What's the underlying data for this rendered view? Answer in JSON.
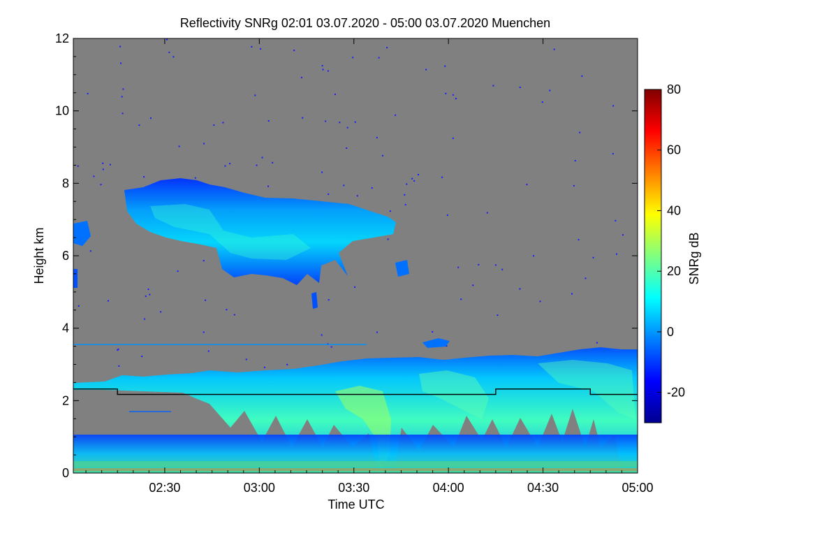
{
  "chart_data": {
    "type": "heatmap",
    "title": "Reflectivity SNRg   02:01 03.07.2020 - 05:00 03.07.2020 Muenchen",
    "xlabel": "Time UTC",
    "ylabel": "Height km",
    "x_range": [
      "02:01",
      "05:00"
    ],
    "xlim_minutes": [
      121,
      300
    ],
    "ylim": [
      0,
      12
    ],
    "x_ticks": [
      {
        "label": "02:30",
        "minutes": 150
      },
      {
        "label": "03:00",
        "minutes": 180
      },
      {
        "label": "03:30",
        "minutes": 210
      },
      {
        "label": "04:00",
        "minutes": 240
      },
      {
        "label": "04:30",
        "minutes": 270
      },
      {
        "label": "05:00",
        "minutes": 300
      }
    ],
    "y_ticks": [
      "0",
      "2",
      "4",
      "6",
      "8",
      "10",
      "12"
    ],
    "y_tick_values": [
      0,
      2,
      4,
      6,
      8,
      10,
      12
    ],
    "colorbar": {
      "label": "SNRg dB",
      "range": [
        -30,
        80
      ],
      "ticks": [
        "-20",
        "0",
        "20",
        "40",
        "60",
        "80"
      ],
      "tick_values": [
        -20,
        0,
        20,
        40,
        60,
        80
      ],
      "colors": [
        "#00008f",
        "#0000ff",
        "#0080ff",
        "#00ffff",
        "#80ff80",
        "#ffff00",
        "#ff8000",
        "#ff0000",
        "#800000"
      ]
    },
    "background_color": "#808080",
    "features": [
      {
        "name": "upper cloud layer",
        "time_start": "02:17",
        "time_end": "03:44",
        "height_km": [
          5.3,
          8.0
        ],
        "snr_db": [
          -20,
          20
        ]
      },
      {
        "name": "lower cloud layer",
        "time_start": "02:01",
        "time_end": "05:00",
        "top_height_km": [
          2.5,
          3.4
        ],
        "snr_db": [
          -20,
          35
        ]
      },
      {
        "name": "boundary-layer clutter",
        "time_start": "02:01",
        "time_end": "05:00",
        "height_km": [
          0,
          1.1
        ],
        "snr_db": [
          -20,
          25
        ]
      }
    ],
    "mixing_layer_line": {
      "color": "#000000",
      "points": [
        {
          "minutes": 121,
          "height_km": 2.32
        },
        {
          "minutes": 135,
          "height_km": 2.32
        },
        {
          "minutes": 135,
          "height_km": 2.17
        },
        {
          "minutes": 255,
          "height_km": 2.17
        },
        {
          "minutes": 255,
          "height_km": 2.32
        },
        {
          "minutes": 285,
          "height_km": 2.32
        },
        {
          "minutes": 285,
          "height_km": 2.17
        },
        {
          "minutes": 300,
          "height_km": 2.17
        }
      ]
    }
  }
}
